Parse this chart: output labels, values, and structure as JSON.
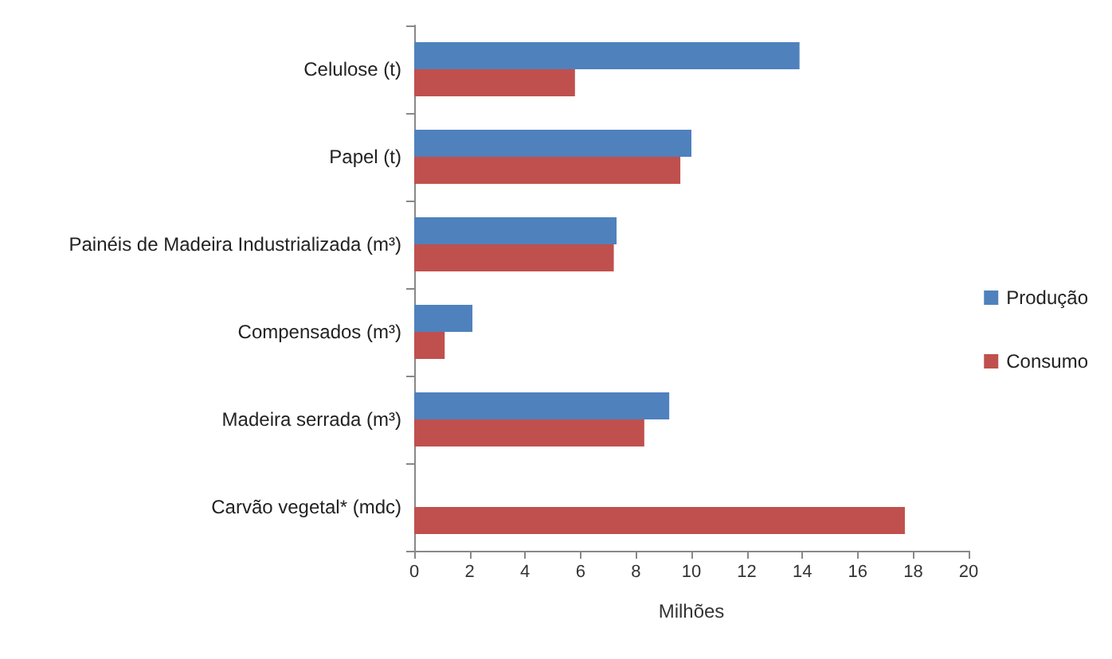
{
  "chart_data": {
    "type": "bar",
    "orientation": "horizontal",
    "xlabel": "Milhões",
    "categories": [
      "Celulose (t)",
      "Papel (t)",
      "Painéis de Madeira Industrializada (m³)",
      "Compensados (m³)",
      "Madeira serrada (m³)",
      "Carvão vegetal* (mdc)"
    ],
    "series": [
      {
        "name": "Produção",
        "color": "#4f81bd",
        "values": [
          13.9,
          10.0,
          7.3,
          2.1,
          9.2,
          null
        ]
      },
      {
        "name": "Consumo",
        "color": "#c0504d",
        "values": [
          5.8,
          9.6,
          7.2,
          1.1,
          8.3,
          17.7
        ]
      }
    ],
    "xlim": [
      0,
      20
    ],
    "xticks": [
      0,
      2,
      4,
      6,
      8,
      10,
      12,
      14,
      16,
      18,
      20
    ],
    "grid": false,
    "legend": "right"
  }
}
